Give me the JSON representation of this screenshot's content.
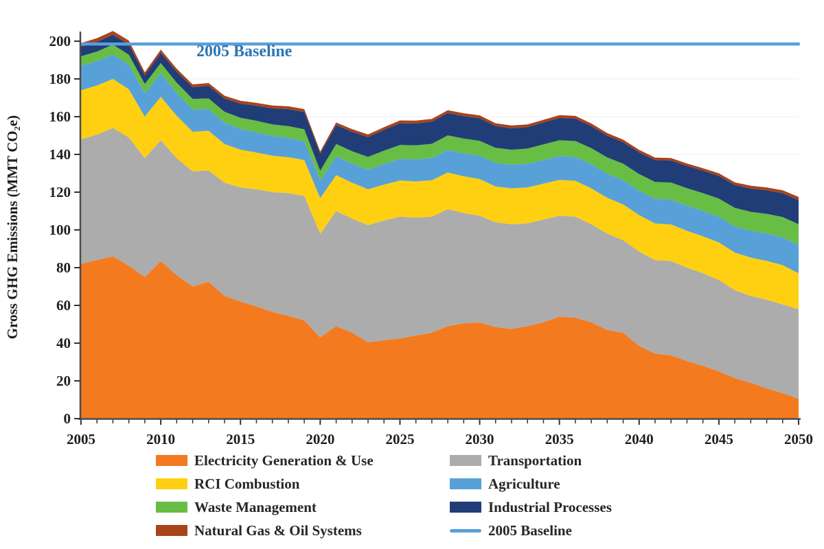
{
  "chart_data": {
    "type": "area",
    "stacked": true,
    "title": "",
    "xlabel": "",
    "ylabel": "Gross GHG Emissions (MMT CO₂e)",
    "ylim": [
      0,
      200
    ],
    "y_ticks": [
      0,
      20,
      40,
      60,
      80,
      100,
      120,
      140,
      160,
      180,
      200
    ],
    "x_major_ticks": [
      2005,
      2010,
      2015,
      2020,
      2025,
      2030,
      2035,
      2040,
      2045,
      2050
    ],
    "grid": "faint-horizontal",
    "legend_position": "bottom-two-columns",
    "x": [
      2005,
      2006,
      2007,
      2008,
      2009,
      2010,
      2011,
      2012,
      2013,
      2014,
      2015,
      2016,
      2017,
      2018,
      2019,
      2020,
      2021,
      2022,
      2023,
      2024,
      2025,
      2026,
      2027,
      2028,
      2029,
      2030,
      2031,
      2032,
      2033,
      2034,
      2035,
      2036,
      2037,
      2038,
      2039,
      2040,
      2041,
      2042,
      2043,
      2044,
      2045,
      2046,
      2047,
      2048,
      2049,
      2050
    ],
    "series": [
      {
        "name": "Electricity Generation & Use",
        "color": "#F47A20",
        "values": [
          82,
          84,
          86,
          81,
          75,
          83.5,
          76,
          70,
          72.5,
          65,
          62,
          59.5,
          56.5,
          54.5,
          52,
          43,
          49,
          45.5,
          40.5,
          41.5,
          42.5,
          44,
          45.5,
          49,
          50.5,
          51,
          48.5,
          47.5,
          49,
          51,
          54,
          53.5,
          51,
          47,
          45.5,
          38.5,
          34.5,
          33.5,
          30.5,
          28,
          25,
          21.5,
          19,
          16,
          13.5,
          10.5
        ]
      },
      {
        "name": "Transportation",
        "color": "#ACACAC",
        "values": [
          66,
          66.5,
          68,
          68,
          63,
          64,
          62,
          61,
          59,
          60,
          60.5,
          62,
          63.5,
          65,
          66,
          55,
          61,
          60.5,
          62,
          63.5,
          64.5,
          62.5,
          61.5,
          62,
          58.5,
          56.5,
          55.5,
          55.5,
          54.5,
          54.5,
          53.5,
          53.5,
          52,
          51,
          49,
          50,
          49.5,
          50,
          49.5,
          49,
          48.5,
          46.5,
          46,
          47,
          47,
          47.5
        ]
      },
      {
        "name": "RCI Combustion",
        "color": "#FFD012",
        "values": [
          26,
          26,
          26,
          25.5,
          22,
          23,
          22.5,
          21,
          21,
          20.5,
          20,
          19.5,
          19.3,
          19,
          19,
          18.8,
          19,
          19,
          19,
          19,
          19.2,
          19.2,
          19.3,
          19.4,
          19.4,
          19.4,
          19,
          19,
          19,
          19,
          19,
          19,
          19,
          19,
          19,
          19.3,
          19.4,
          19.4,
          19.5,
          19.6,
          19.8,
          20,
          20.3,
          20.6,
          20.8,
          19
        ]
      },
      {
        "name": "Agriculture",
        "color": "#58A1D8",
        "values": [
          13,
          13,
          13,
          13,
          12.3,
          12.5,
          12,
          11.8,
          11.5,
          11.3,
          11,
          10.8,
          10.5,
          10.3,
          10,
          9.5,
          10,
          10.2,
          10.5,
          11,
          11.5,
          11.7,
          11.8,
          12,
          12.2,
          12.4,
          12.5,
          12.5,
          12.5,
          12.6,
          12.7,
          12.7,
          12.8,
          12.8,
          12.9,
          13,
          13.1,
          13.2,
          13.4,
          13.5,
          13.7,
          13.9,
          14.2,
          14.5,
          14.8,
          15
        ]
      },
      {
        "name": "Waste Management",
        "color": "#68BD45",
        "values": [
          5,
          5,
          5.2,
          5.3,
          5,
          5.4,
          5.5,
          5.6,
          5.7,
          5.8,
          5.9,
          6,
          6.1,
          6.2,
          6.3,
          5,
          6.5,
          6.5,
          6.7,
          7,
          7.3,
          7.4,
          7.5,
          7.7,
          7.8,
          7.9,
          8,
          8,
          8.1,
          8.2,
          8.3,
          8.4,
          8.5,
          8.6,
          8.7,
          8.8,
          8.9,
          9,
          9.2,
          9.4,
          9.6,
          9.8,
          10.1,
          10.4,
          10.7,
          11
        ]
      },
      {
        "name": "Industrial Processes",
        "color": "#203D78",
        "values": [
          5,
          5.1,
          5.2,
          5.5,
          4.7,
          5.4,
          5.8,
          6.2,
          6.6,
          7,
          7.5,
          8,
          8.5,
          9,
          9.2,
          9,
          10,
          10.3,
          10.5,
          11,
          11.5,
          11.6,
          11.7,
          11.8,
          11.9,
          12,
          11.5,
          11.3,
          11.4,
          11.6,
          11.8,
          11.9,
          11.7,
          11.5,
          11.4,
          11.5,
          11.6,
          11.7,
          11.8,
          11.9,
          12,
          12.1,
          12.3,
          12.5,
          12.6,
          12.8
        ]
      },
      {
        "name": "Natural Gas & Oil Systems",
        "color": "#A8431C",
        "values": [
          2,
          2,
          2,
          2,
          1.5,
          1.7,
          1.6,
          1.5,
          1.5,
          1.5,
          1.5,
          1.5,
          1.5,
          1.5,
          1.5,
          1.2,
          1.4,
          1.4,
          1.4,
          1.4,
          1.5,
          1.5,
          1.5,
          1.5,
          1.5,
          1.5,
          1.5,
          1.5,
          1.4,
          1.4,
          1.5,
          1.4,
          1.4,
          1.4,
          1.3,
          1.3,
          1.3,
          1.3,
          1.3,
          1.3,
          1.4,
          1.4,
          1.5,
          1.5,
          1.6,
          1.7
        ]
      }
    ],
    "baseline": {
      "label": "2005 Baseline",
      "value": 198.5,
      "line_color": "#56A0DC",
      "text_color": "#2E75B6"
    },
    "legend_columns": [
      [
        {
          "label": "Electricity Generation & Use",
          "color": "#F47A20",
          "swatch": "box"
        },
        {
          "label": "RCI Combustion",
          "color": "#FFD012",
          "swatch": "box"
        },
        {
          "label": "Waste Management",
          "color": "#68BD45",
          "swatch": "box"
        },
        {
          "label": "Natural Gas & Oil Systems",
          "color": "#A8431C",
          "swatch": "box"
        }
      ],
      [
        {
          "label": "Transportation",
          "color": "#ACACAC",
          "swatch": "box"
        },
        {
          "label": "Agriculture",
          "color": "#58A1D8",
          "swatch": "box"
        },
        {
          "label": "Industrial Processes",
          "color": "#203D78",
          "swatch": "box"
        },
        {
          "label": "2005 Baseline",
          "color": "#56A0DC",
          "swatch": "line"
        }
      ]
    ],
    "colors": {
      "axis": "#4d4d4d",
      "tick": "#333333",
      "tick_text": "#1f1f1f",
      "gridline": "#f2f2f2",
      "background": "#ffffff"
    }
  }
}
